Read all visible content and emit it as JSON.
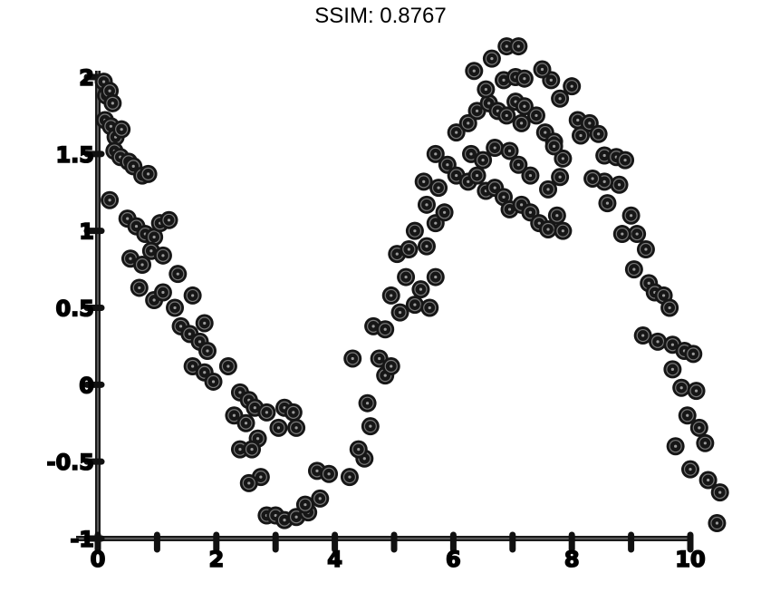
{
  "title": "SSIM: 0.8767",
  "chart_data": {
    "type": "scatter",
    "title": "SSIM: 0.8767",
    "xlabel": "",
    "ylabel": "",
    "xlim": [
      0,
      10
    ],
    "ylim": [
      -1,
      2
    ],
    "x_ticks": [
      0,
      1,
      2,
      3,
      4,
      5,
      6,
      7,
      8,
      9,
      10
    ],
    "x_tick_labels": [
      "0",
      "",
      "2",
      "",
      "4",
      "",
      "6",
      "",
      "8",
      "",
      "10"
    ],
    "y_ticks": [
      -1,
      -0.5,
      0,
      0.5,
      1,
      1.5,
      2
    ],
    "y_tick_labels": [
      "-1",
      "-0.5",
      "0",
      "0.5",
      "1",
      "1.5",
      "2"
    ],
    "grid": false,
    "legend": "none",
    "marker_color": "#161616",
    "series": [
      {
        "points": [
          [
            0.1,
            1.97
          ],
          [
            0.14,
            1.88
          ],
          [
            0.2,
            1.91
          ],
          [
            0.25,
            1.83
          ],
          [
            0.12,
            1.72
          ],
          [
            0.22,
            1.68
          ],
          [
            0.3,
            1.61
          ],
          [
            0.4,
            1.66
          ],
          [
            0.28,
            1.52
          ],
          [
            0.38,
            1.48
          ],
          [
            0.52,
            1.45
          ],
          [
            0.6,
            1.42
          ],
          [
            0.75,
            1.36
          ],
          [
            0.85,
            1.37
          ],
          [
            0.2,
            1.2
          ],
          [
            0.5,
            1.08
          ],
          [
            0.65,
            1.03
          ],
          [
            0.8,
            0.98
          ],
          [
            0.95,
            0.96
          ],
          [
            1.05,
            1.05
          ],
          [
            1.2,
            1.07
          ],
          [
            0.55,
            0.82
          ],
          [
            0.75,
            0.78
          ],
          [
            0.9,
            0.87
          ],
          [
            1.1,
            0.84
          ],
          [
            1.35,
            0.72
          ],
          [
            0.7,
            0.63
          ],
          [
            0.95,
            0.55
          ],
          [
            1.1,
            0.6
          ],
          [
            1.3,
            0.5
          ],
          [
            1.6,
            0.58
          ],
          [
            1.4,
            0.38
          ],
          [
            1.55,
            0.33
          ],
          [
            1.72,
            0.28
          ],
          [
            1.85,
            0.22
          ],
          [
            1.8,
            0.4
          ],
          [
            1.6,
            0.12
          ],
          [
            1.8,
            0.08
          ],
          [
            1.95,
            0.02
          ],
          [
            2.2,
            0.12
          ],
          [
            2.4,
            -0.05
          ],
          [
            2.55,
            -0.1
          ],
          [
            2.3,
            -0.2
          ],
          [
            2.5,
            -0.25
          ],
          [
            2.65,
            -0.15
          ],
          [
            2.85,
            -0.18
          ],
          [
            2.7,
            -0.35
          ],
          [
            3.15,
            -0.15
          ],
          [
            3.3,
            -0.18
          ],
          [
            3.05,
            -0.28
          ],
          [
            3.35,
            -0.28
          ],
          [
            2.4,
            -0.42
          ],
          [
            2.6,
            -0.42
          ],
          [
            2.75,
            -0.6
          ],
          [
            2.55,
            -0.64
          ],
          [
            2.85,
            -0.85
          ],
          [
            3.0,
            -0.85
          ],
          [
            3.15,
            -0.88
          ],
          [
            3.35,
            -0.86
          ],
          [
            3.55,
            -0.83
          ],
          [
            3.7,
            -0.56
          ],
          [
            3.9,
            -0.58
          ],
          [
            3.75,
            -0.74
          ],
          [
            3.5,
            -0.78
          ],
          [
            4.25,
            -0.6
          ],
          [
            4.5,
            -0.48
          ],
          [
            4.4,
            -0.42
          ],
          [
            4.6,
            -0.27
          ],
          [
            4.55,
            -0.12
          ],
          [
            4.3,
            0.17
          ],
          [
            4.75,
            0.17
          ],
          [
            4.85,
            0.06
          ],
          [
            4.95,
            0.12
          ],
          [
            4.65,
            0.38
          ],
          [
            4.85,
            0.36
          ],
          [
            5.1,
            0.47
          ],
          [
            5.35,
            0.52
          ],
          [
            5.6,
            0.5
          ],
          [
            5.45,
            0.62
          ],
          [
            5.7,
            0.7
          ],
          [
            4.95,
            0.58
          ],
          [
            5.2,
            0.7
          ],
          [
            5.05,
            0.85
          ],
          [
            5.25,
            0.88
          ],
          [
            5.55,
            0.9
          ],
          [
            5.35,
            1.0
          ],
          [
            5.7,
            1.05
          ],
          [
            5.85,
            1.12
          ],
          [
            5.55,
            1.17
          ],
          [
            5.75,
            1.28
          ],
          [
            5.5,
            1.32
          ],
          [
            5.7,
            1.5
          ],
          [
            5.9,
            1.43
          ],
          [
            6.05,
            1.36
          ],
          [
            6.25,
            1.32
          ],
          [
            6.4,
            1.36
          ],
          [
            6.55,
            1.26
          ],
          [
            6.7,
            1.28
          ],
          [
            6.85,
            1.22
          ],
          [
            6.95,
            1.14
          ],
          [
            7.15,
            1.17
          ],
          [
            7.3,
            1.12
          ],
          [
            7.45,
            1.05
          ],
          [
            7.6,
            1.01
          ],
          [
            7.75,
            1.1
          ],
          [
            7.85,
            1.0
          ],
          [
            6.05,
            1.64
          ],
          [
            6.25,
            1.7
          ],
          [
            6.4,
            1.78
          ],
          [
            6.6,
            1.83
          ],
          [
            6.75,
            1.78
          ],
          [
            6.9,
            1.75
          ],
          [
            7.05,
            1.84
          ],
          [
            7.2,
            1.81
          ],
          [
            7.4,
            1.75
          ],
          [
            7.15,
            1.7
          ],
          [
            7.55,
            1.64
          ],
          [
            7.7,
            1.58
          ],
          [
            7.85,
            1.47
          ],
          [
            6.3,
            1.5
          ],
          [
            6.5,
            1.46
          ],
          [
            6.7,
            1.54
          ],
          [
            6.95,
            1.52
          ],
          [
            7.1,
            1.43
          ],
          [
            7.3,
            1.36
          ],
          [
            7.6,
            1.27
          ],
          [
            7.8,
            1.35
          ],
          [
            6.55,
            1.92
          ],
          [
            6.85,
            1.98
          ],
          [
            7.05,
            2.0
          ],
          [
            7.2,
            1.99
          ],
          [
            7.65,
            1.98
          ],
          [
            7.8,
            1.86
          ],
          [
            8.0,
            1.94
          ],
          [
            6.35,
            2.04
          ],
          [
            6.65,
            2.12
          ],
          [
            7.5,
            2.05
          ],
          [
            6.9,
            2.2
          ],
          [
            7.1,
            2.2
          ],
          [
            8.1,
            1.72
          ],
          [
            7.7,
            1.55
          ],
          [
            8.15,
            1.62
          ],
          [
            8.3,
            1.7
          ],
          [
            8.45,
            1.63
          ],
          [
            8.55,
            1.49
          ],
          [
            8.75,
            1.48
          ],
          [
            8.9,
            1.46
          ],
          [
            8.8,
            1.3
          ],
          [
            8.55,
            1.32
          ],
          [
            8.35,
            1.34
          ],
          [
            8.6,
            1.18
          ],
          [
            9.0,
            1.1
          ],
          [
            9.1,
            0.98
          ],
          [
            8.85,
            0.98
          ],
          [
            9.25,
            0.88
          ],
          [
            9.05,
            0.75
          ],
          [
            9.3,
            0.66
          ],
          [
            9.4,
            0.6
          ],
          [
            9.55,
            0.58
          ],
          [
            9.65,
            0.5
          ],
          [
            9.45,
            0.28
          ],
          [
            9.2,
            0.32
          ],
          [
            9.7,
            0.26
          ],
          [
            9.9,
            0.22
          ],
          [
            10.05,
            0.2
          ],
          [
            9.7,
            0.1
          ],
          [
            9.85,
            -0.02
          ],
          [
            10.1,
            -0.04
          ],
          [
            9.95,
            -0.2
          ],
          [
            10.15,
            -0.28
          ],
          [
            9.75,
            -0.4
          ],
          [
            10.25,
            -0.38
          ],
          [
            10.0,
            -0.55
          ],
          [
            10.3,
            -0.62
          ],
          [
            10.5,
            -0.7
          ],
          [
            10.45,
            -0.9
          ]
        ]
      }
    ]
  }
}
